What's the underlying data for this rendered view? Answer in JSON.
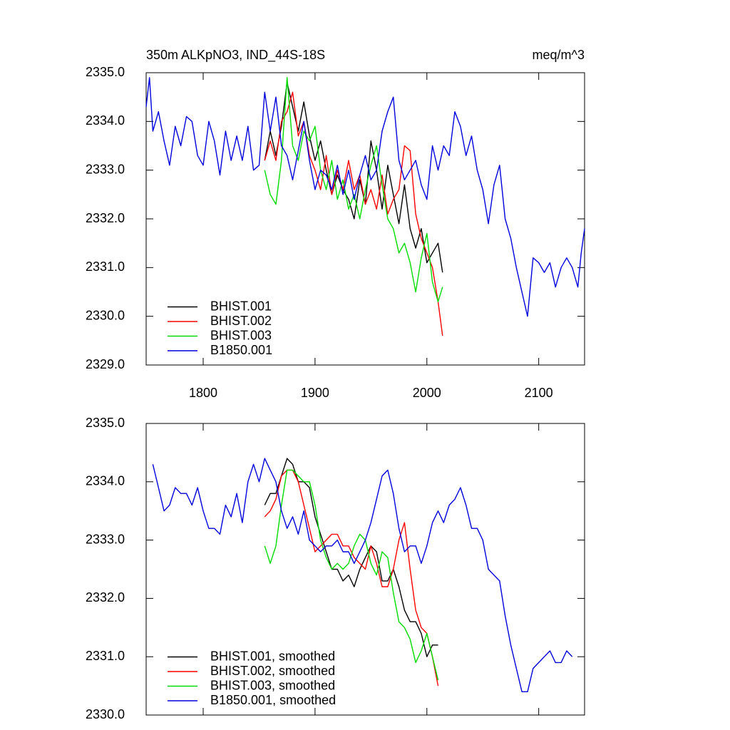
{
  "chart_data": [
    {
      "type": "line",
      "title": "350m ALKpNO3, IND_44S-18S",
      "units": "meq/m^3",
      "xlim": [
        1749,
        2141
      ],
      "ylim": [
        2329,
        2335
      ],
      "xticks": [
        1800,
        1900,
        2000,
        2100
      ],
      "yticks": [
        {
          "value": 2329,
          "label": "2329.0"
        },
        {
          "value": 2330,
          "label": "2330.0"
        },
        {
          "value": 2331,
          "label": "2331.0"
        },
        {
          "value": 2332,
          "label": "2332.0"
        },
        {
          "value": 2333,
          "label": "2333.0"
        },
        {
          "value": 2334,
          "label": "2334.0"
        },
        {
          "value": 2335,
          "label": "2335.0"
        }
      ],
      "show_xtick_labels": true,
      "legend": "lower left",
      "series": [
        {
          "name": "BHIST.001",
          "color": "#000000",
          "x": [
            1855,
            1860,
            1865,
            1870,
            1875,
            1880,
            1885,
            1890,
            1895,
            1900,
            1905,
            1910,
            1915,
            1920,
            1925,
            1930,
            1935,
            1940,
            1945,
            1950,
            1955,
            1960,
            1965,
            1970,
            1975,
            1980,
            1985,
            1990,
            1995,
            2000,
            2005,
            2010,
            2014
          ],
          "values": [
            2333.2,
            2333.8,
            2333.3,
            2333.9,
            2334.8,
            2334.3,
            2333.8,
            2334.4,
            2333.7,
            2333.2,
            2333.6,
            2333.0,
            2332.5,
            2332.9,
            2332.6,
            2332.4,
            2332.0,
            2332.8,
            2332.3,
            2333.6,
            2333.0,
            2332.2,
            2333.1,
            2332.5,
            2331.9,
            2332.7,
            2331.8,
            2331.4,
            2331.8,
            2331.1,
            2331.3,
            2331.5,
            2330.9
          ]
        },
        {
          "name": "BHIST.002",
          "color": "#ff0000",
          "x": [
            1855,
            1860,
            1865,
            1870,
            1875,
            1880,
            1885,
            1890,
            1895,
            1900,
            1905,
            1910,
            1915,
            1920,
            1925,
            1930,
            1935,
            1940,
            1945,
            1950,
            1955,
            1960,
            1965,
            1970,
            1975,
            1980,
            1985,
            1990,
            1995,
            2000,
            2005,
            2010,
            2014
          ],
          "values": [
            2333.2,
            2333.6,
            2333.2,
            2334.0,
            2334.2,
            2334.6,
            2333.7,
            2334.0,
            2333.3,
            2333.0,
            2332.6,
            2333.3,
            2332.5,
            2333.0,
            2332.6,
            2333.2,
            2332.6,
            2332.9,
            2332.3,
            2332.6,
            2332.2,
            2332.9,
            2332.1,
            2332.4,
            2332.6,
            2333.5,
            2333.4,
            2332.1,
            2331.6,
            2331.3,
            2331.0,
            2330.3,
            2329.6
          ]
        },
        {
          "name": "BHIST.003",
          "color": "#00dd00",
          "x": [
            1855,
            1860,
            1865,
            1870,
            1875,
            1880,
            1885,
            1890,
            1895,
            1900,
            1905,
            1910,
            1915,
            1920,
            1925,
            1930,
            1935,
            1940,
            1945,
            1950,
            1955,
            1960,
            1965,
            1970,
            1975,
            1980,
            1985,
            1990,
            1995,
            2000,
            2005,
            2010,
            2014
          ],
          "values": [
            2333.0,
            2332.5,
            2332.3,
            2333.2,
            2334.9,
            2333.5,
            2333.2,
            2333.8,
            2333.6,
            2333.9,
            2333.0,
            2332.6,
            2333.2,
            2332.4,
            2332.8,
            2332.2,
            2332.5,
            2332.0,
            2332.6,
            2333.1,
            2333.5,
            2332.7,
            2332.0,
            2331.8,
            2331.3,
            2331.5,
            2331.1,
            2330.5,
            2331.2,
            2331.7,
            2330.7,
            2330.3,
            2330.6
          ]
        },
        {
          "name": "B1850.001",
          "color": "#0000dd",
          "x": [
            1749,
            1752,
            1755,
            1760,
            1765,
            1770,
            1775,
            1780,
            1785,
            1790,
            1795,
            1800,
            1805,
            1810,
            1815,
            1820,
            1825,
            1830,
            1835,
            1840,
            1845,
            1850,
            1855,
            1860,
            1865,
            1870,
            1875,
            1880,
            1885,
            1890,
            1895,
            1900,
            1905,
            1910,
            1915,
            1920,
            1925,
            1930,
            1935,
            1940,
            1945,
            1950,
            1955,
            1960,
            1965,
            1970,
            1975,
            1980,
            1985,
            1990,
            1995,
            2000,
            2005,
            2010,
            2015,
            2020,
            2025,
            2030,
            2035,
            2040,
            2045,
            2050,
            2055,
            2060,
            2065,
            2070,
            2075,
            2080,
            2085,
            2090,
            2095,
            2100,
            2105,
            2110,
            2115,
            2120,
            2125,
            2130,
            2135,
            2138,
            2141
          ],
          "values": [
            2334.3,
            2334.9,
            2333.8,
            2334.2,
            2333.6,
            2333.1,
            2333.9,
            2333.5,
            2334.1,
            2334.0,
            2333.3,
            2333.1,
            2334.0,
            2333.6,
            2332.9,
            2333.8,
            2333.2,
            2333.7,
            2333.2,
            2333.9,
            2333.0,
            2333.1,
            2334.6,
            2333.8,
            2334.5,
            2333.5,
            2333.3,
            2332.8,
            2333.4,
            2334.0,
            2333.2,
            2332.6,
            2333.0,
            2332.9,
            2332.6,
            2333.1,
            2332.5,
            2333.0,
            2332.4,
            2332.9,
            2333.3,
            2332.8,
            2333.0,
            2333.8,
            2334.2,
            2334.5,
            2333.2,
            2332.8,
            2333.0,
            2333.2,
            2332.7,
            2332.4,
            2333.5,
            2333.0,
            2333.5,
            2333.3,
            2334.2,
            2333.9,
            2333.3,
            2333.7,
            2333.0,
            2332.6,
            2331.9,
            2332.7,
            2333.1,
            2332.0,
            2331.6,
            2331.0,
            2330.5,
            2330.0,
            2331.2,
            2331.1,
            2330.9,
            2331.1,
            2330.6,
            2331.0,
            2331.2,
            2331.0,
            2330.6,
            2331.3,
            2331.8
          ]
        }
      ]
    },
    {
      "type": "line",
      "xlim": [
        1749,
        2141
      ],
      "ylim": [
        2330,
        2335
      ],
      "xticks": [
        1800,
        1900,
        2000,
        2100
      ],
      "yticks": [
        {
          "value": 2330,
          "label": "2330.0"
        },
        {
          "value": 2331,
          "label": "2331.0"
        },
        {
          "value": 2332,
          "label": "2332.0"
        },
        {
          "value": 2333,
          "label": "2333.0"
        },
        {
          "value": 2334,
          "label": "2334.0"
        },
        {
          "value": 2335,
          "label": "2335.0"
        }
      ],
      "show_xtick_labels": false,
      "legend": "lower left",
      "series": [
        {
          "name": "BHIST.001, smoothed",
          "color": "#000000",
          "x": [
            1855,
            1860,
            1865,
            1870,
            1875,
            1880,
            1885,
            1890,
            1895,
            1900,
            1905,
            1910,
            1915,
            1920,
            1925,
            1930,
            1935,
            1940,
            1945,
            1950,
            1955,
            1960,
            1965,
            1970,
            1975,
            1980,
            1985,
            1990,
            1995,
            2000,
            2005,
            2010
          ],
          "values": [
            2333.6,
            2333.8,
            2333.8,
            2334.1,
            2334.4,
            2334.3,
            2334.0,
            2334.0,
            2333.9,
            2333.4,
            2333.1,
            2332.8,
            2332.5,
            2332.5,
            2332.3,
            2332.4,
            2332.2,
            2332.5,
            2332.7,
            2332.9,
            2332.8,
            2332.3,
            2332.3,
            2332.5,
            2332.2,
            2331.8,
            2331.6,
            2331.6,
            2331.4,
            2331.0,
            2331.2,
            2331.2
          ]
        },
        {
          "name": "BHIST.002, smoothed",
          "color": "#ff0000",
          "x": [
            1855,
            1860,
            1865,
            1870,
            1875,
            1880,
            1885,
            1890,
            1895,
            1900,
            1905,
            1910,
            1915,
            1920,
            1925,
            1930,
            1935,
            1940,
            1945,
            1950,
            1955,
            1960,
            1965,
            1970,
            1975,
            1980,
            1985,
            1990,
            1995,
            2000,
            2005,
            2010
          ],
          "values": [
            2333.4,
            2333.5,
            2333.7,
            2334.1,
            2334.2,
            2334.2,
            2334.0,
            2333.6,
            2333.2,
            2332.8,
            2332.9,
            2333.0,
            2333.1,
            2333.1,
            2332.9,
            2332.9,
            2332.7,
            2332.6,
            2332.5,
            2332.9,
            2332.6,
            2332.2,
            2332.2,
            2332.5,
            2333.0,
            2333.3,
            2332.5,
            2331.8,
            2331.5,
            2331.4,
            2331.0,
            2330.5
          ]
        },
        {
          "name": "BHIST.003, smoothed",
          "color": "#00dd00",
          "x": [
            1855,
            1860,
            1865,
            1870,
            1875,
            1880,
            1885,
            1890,
            1895,
            1900,
            1905,
            1910,
            1915,
            1920,
            1925,
            1930,
            1935,
            1940,
            1945,
            1950,
            1955,
            1960,
            1965,
            1970,
            1975,
            1980,
            1985,
            1990,
            1995,
            2000,
            2005,
            2010
          ],
          "values": [
            2332.9,
            2332.6,
            2332.9,
            2333.6,
            2334.2,
            2334.2,
            2334.1,
            2334.0,
            2334.0,
            2333.6,
            2333.0,
            2332.7,
            2332.5,
            2332.6,
            2332.5,
            2332.6,
            2332.9,
            2333.1,
            2333.0,
            2332.6,
            2332.4,
            2332.8,
            2332.7,
            2332.1,
            2331.6,
            2331.5,
            2331.3,
            2330.9,
            2331.1,
            2331.4,
            2331.0,
            2330.6
          ]
        },
        {
          "name": "B1850.001, smoothed",
          "color": "#0000dd",
          "x": [
            1755,
            1760,
            1765,
            1770,
            1775,
            1780,
            1785,
            1790,
            1795,
            1800,
            1805,
            1810,
            1815,
            1820,
            1825,
            1830,
            1835,
            1840,
            1845,
            1850,
            1855,
            1860,
            1865,
            1870,
            1875,
            1880,
            1885,
            1890,
            1895,
            1900,
            1905,
            1910,
            1915,
            1920,
            1925,
            1930,
            1935,
            1940,
            1945,
            1950,
            1955,
            1960,
            1965,
            1970,
            1975,
            1980,
            1985,
            1990,
            1995,
            2000,
            2005,
            2010,
            2015,
            2020,
            2025,
            2030,
            2035,
            2040,
            2045,
            2050,
            2055,
            2060,
            2065,
            2070,
            2075,
            2080,
            2085,
            2090,
            2095,
            2100,
            2105,
            2110,
            2115,
            2120,
            2125,
            2130
          ],
          "values": [
            2334.3,
            2333.9,
            2333.5,
            2333.6,
            2333.9,
            2333.8,
            2333.8,
            2333.6,
            2333.9,
            2333.5,
            2333.2,
            2333.2,
            2333.1,
            2333.6,
            2333.4,
            2333.8,
            2333.3,
            2334.0,
            2334.3,
            2334.0,
            2334.4,
            2334.2,
            2334.0,
            2333.5,
            2333.2,
            2333.4,
            2333.1,
            2333.5,
            2333.0,
            2332.9,
            2332.8,
            2332.9,
            2332.9,
            2333.0,
            2332.8,
            2332.8,
            2332.6,
            2332.8,
            2333.0,
            2333.3,
            2333.7,
            2334.1,
            2334.2,
            2333.8,
            2333.2,
            2332.8,
            2332.9,
            2332.9,
            2332.6,
            2332.9,
            2333.3,
            2333.5,
            2333.3,
            2333.6,
            2333.7,
            2333.9,
            2333.6,
            2333.2,
            2333.2,
            2333.0,
            2332.5,
            2332.4,
            2332.3,
            2331.7,
            2331.2,
            2330.8,
            2330.4,
            2330.4,
            2330.8,
            2330.9,
            2331.0,
            2331.1,
            2330.9,
            2330.9,
            2331.1,
            2331.0
          ]
        }
      ]
    }
  ]
}
